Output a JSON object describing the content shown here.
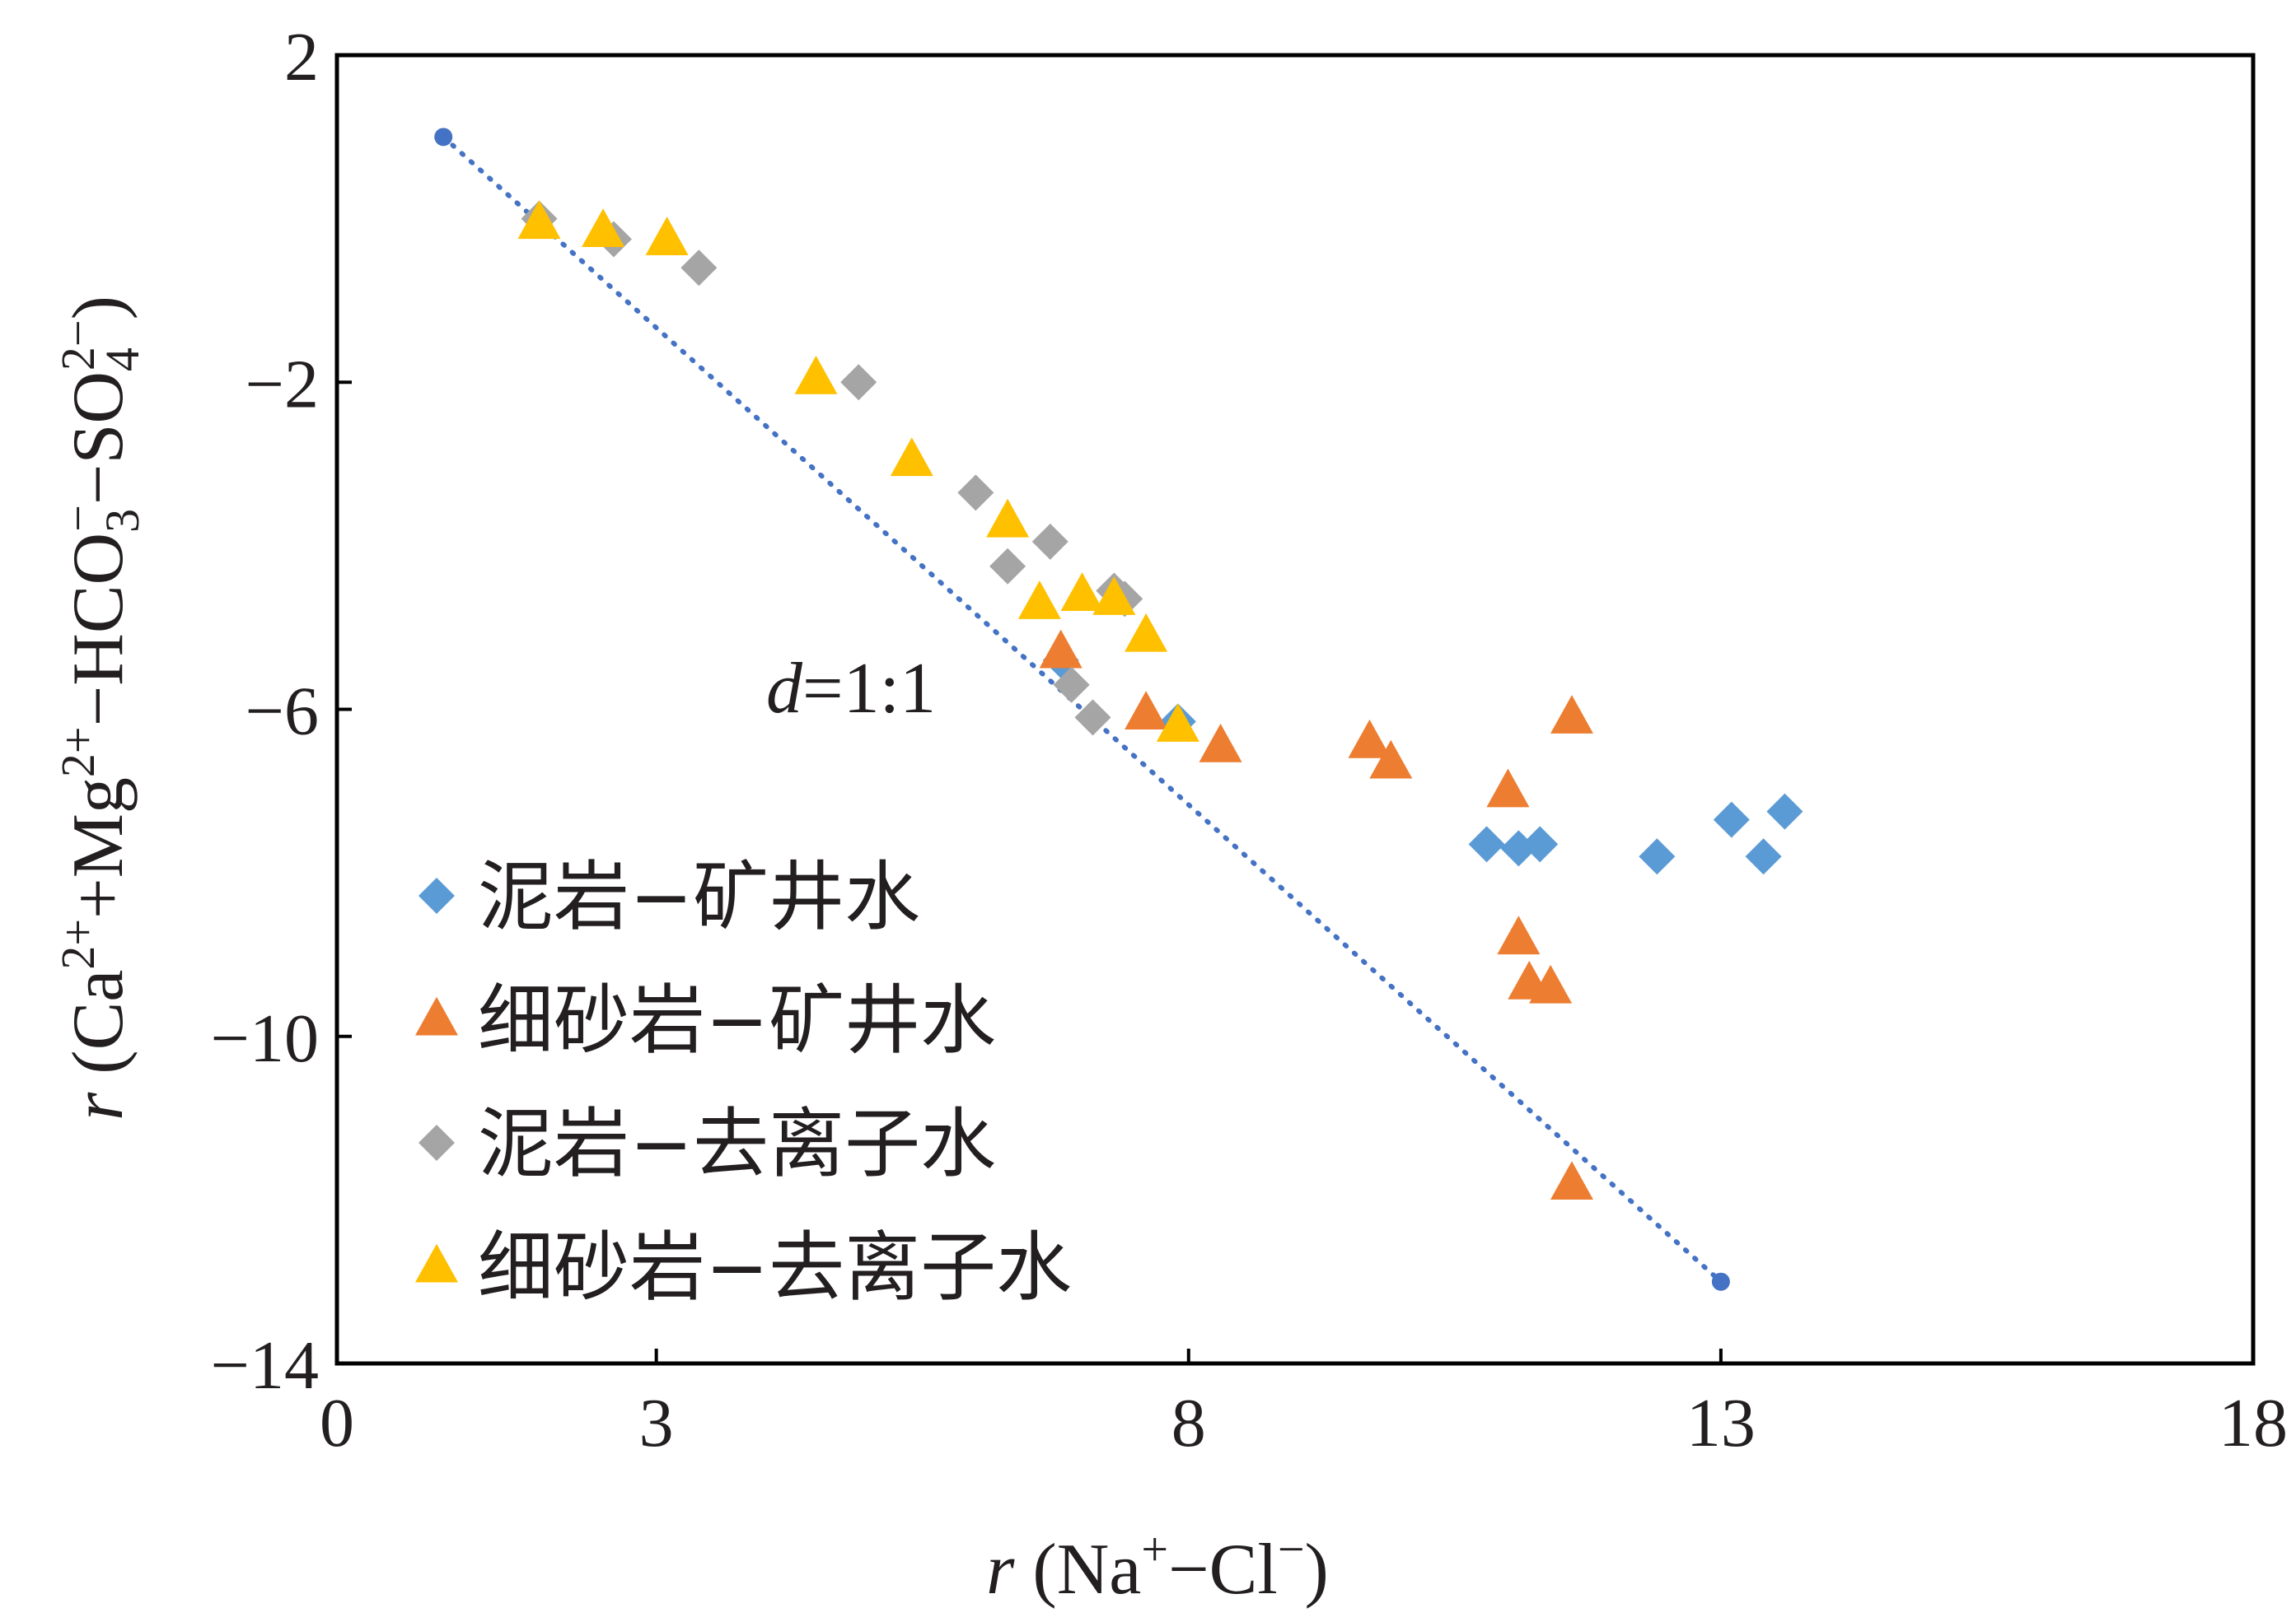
{
  "chart_data": {
    "type": "scatter",
    "title": "",
    "xlabel": {
      "var": "r",
      "pre": " (Na",
      "sup1": "+",
      "mid": "−Cl",
      "sup2": "−",
      "post": ")"
    },
    "ylabel": {
      "var": "r",
      "pre": " (Ca",
      "sup1": "2+",
      "mid1": "+Mg",
      "sup2": "2+",
      "mid2": "−HCO",
      "sub3": "3",
      "sup3": "−",
      "mid3": "−SO",
      "sub4": "4",
      "sup4": "2−",
      "post": ")"
    },
    "xlim": [
      0,
      18
    ],
    "ylim": [
      -14,
      2
    ],
    "x_ticks": [
      0,
      3,
      8,
      13,
      18
    ],
    "x_tick_labels": [
      "0",
      "3",
      "8",
      "13",
      "18"
    ],
    "y_ticks": [
      2,
      -2,
      -6,
      -10,
      -14
    ],
    "y_tick_labels": [
      "2",
      "−2",
      "−6",
      "−10",
      "−14"
    ],
    "grid": false,
    "legend": "bottom-left, inside plot",
    "reference_line": {
      "label_var": "d",
      "label_rest": "=1:1",
      "points": [
        [
          1.0,
          1.0
        ],
        [
          13.0,
          -13.0
        ]
      ],
      "color": "#4472c4",
      "style": "dotted"
    },
    "series": [
      {
        "name": "泥岩−矿井水",
        "marker": "diamond",
        "color": "#5b9bd5",
        "points": [
          [
            7.9,
            -6.15
          ],
          [
            6.8,
            -5.4
          ],
          [
            10.8,
            -7.65
          ],
          [
            11.1,
            -7.7
          ],
          [
            11.3,
            -7.65
          ],
          [
            12.4,
            -7.8
          ],
          [
            13.1,
            -7.35
          ],
          [
            13.4,
            -7.8
          ],
          [
            13.6,
            -7.25
          ]
        ]
      },
      {
        "name": "细砂岩−矿井水",
        "marker": "triangle",
        "color": "#ed7d31",
        "points": [
          [
            6.8,
            -5.3
          ],
          [
            7.6,
            -6.05
          ],
          [
            8.3,
            -6.45
          ],
          [
            9.7,
            -6.4
          ],
          [
            9.9,
            -6.65
          ],
          [
            11.0,
            -7.0
          ],
          [
            11.1,
            -8.8
          ],
          [
            11.2,
            -9.35
          ],
          [
            11.4,
            -9.4
          ],
          [
            11.6,
            -6.1
          ],
          [
            11.6,
            -11.8
          ]
        ]
      },
      {
        "name": "泥岩−去离子水",
        "marker": "diamond",
        "color": "#a5a5a5",
        "points": [
          [
            1.9,
            0.0
          ],
          [
            2.6,
            -0.25
          ],
          [
            3.4,
            -0.6
          ],
          [
            4.9,
            -2.0
          ],
          [
            6.0,
            -3.35
          ],
          [
            6.3,
            -4.25
          ],
          [
            6.7,
            -3.95
          ],
          [
            7.3,
            -4.55
          ],
          [
            7.4,
            -4.65
          ],
          [
            6.9,
            -5.7
          ],
          [
            7.1,
            -6.1
          ]
        ]
      },
      {
        "name": "细砂岩−去离子水",
        "marker": "triangle",
        "color": "#ffc000",
        "points": [
          [
            1.9,
            -0.05
          ],
          [
            2.5,
            -0.15
          ],
          [
            3.1,
            -0.25
          ],
          [
            4.5,
            -1.95
          ],
          [
            5.4,
            -2.95
          ],
          [
            6.3,
            -3.7
          ],
          [
            6.6,
            -4.7
          ],
          [
            7.0,
            -4.6
          ],
          [
            7.3,
            -4.65
          ],
          [
            7.6,
            -5.1
          ],
          [
            7.9,
            -6.2
          ]
        ]
      }
    ]
  }
}
